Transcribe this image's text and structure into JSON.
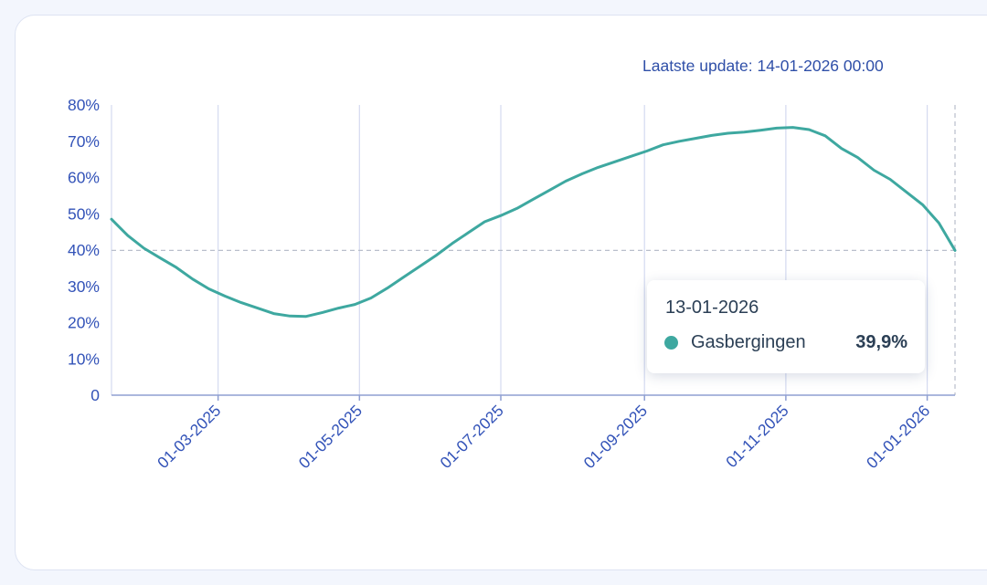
{
  "header": {
    "last_update": "Laatste update: 14-01-2026 00:00"
  },
  "colors": {
    "series": "#3ea8a0",
    "axis_text": "#3353b8",
    "grid": "#d4daf0"
  },
  "tooltip": {
    "date": "13-01-2026",
    "series_name": "Gasbergingen",
    "value": "39,9%"
  },
  "chart_data": {
    "type": "line",
    "y_ticks": [
      "0",
      "10%",
      "20%",
      "30%",
      "40%",
      "50%",
      "60%",
      "70%",
      "80%"
    ],
    "x_ticks": [
      "01-03-2025",
      "01-05-2025",
      "01-07-2025",
      "01-09-2025",
      "01-11-2025",
      "01-01-2026"
    ],
    "x_range": [
      "2025-01-14",
      "2026-01-13"
    ],
    "ylim": [
      0,
      80
    ],
    "grid": "vertical",
    "reference_line_y": 39.9,
    "series": [
      {
        "name": "Gasbergingen",
        "points": [
          [
            "2025-01-14",
            48.5
          ],
          [
            "2025-01-21",
            44.0
          ],
          [
            "2025-01-28",
            40.5
          ],
          [
            "2025-02-04",
            37.8
          ],
          [
            "2025-02-11",
            35.2
          ],
          [
            "2025-02-18",
            32.0
          ],
          [
            "2025-02-25",
            29.3
          ],
          [
            "2025-03-04",
            27.3
          ],
          [
            "2025-03-11",
            25.5
          ],
          [
            "2025-03-18",
            24.0
          ],
          [
            "2025-03-25",
            22.5
          ],
          [
            "2025-04-01",
            21.8
          ],
          [
            "2025-04-08",
            21.7
          ],
          [
            "2025-04-15",
            22.8
          ],
          [
            "2025-04-22",
            24.0
          ],
          [
            "2025-04-29",
            25.0
          ],
          [
            "2025-05-06",
            26.8
          ],
          [
            "2025-05-13",
            29.5
          ],
          [
            "2025-05-20",
            32.5
          ],
          [
            "2025-05-27",
            35.5
          ],
          [
            "2025-06-03",
            38.5
          ],
          [
            "2025-06-10",
            41.8
          ],
          [
            "2025-06-17",
            44.8
          ],
          [
            "2025-06-24",
            47.8
          ],
          [
            "2025-07-01",
            49.5
          ],
          [
            "2025-07-08",
            51.5
          ],
          [
            "2025-07-15",
            54.0
          ],
          [
            "2025-07-22",
            56.5
          ],
          [
            "2025-07-29",
            59.0
          ],
          [
            "2025-08-05",
            61.0
          ],
          [
            "2025-08-12",
            62.8
          ],
          [
            "2025-08-19",
            64.3
          ],
          [
            "2025-08-26",
            65.8
          ],
          [
            "2025-09-02",
            67.3
          ],
          [
            "2025-09-09",
            69.0
          ],
          [
            "2025-09-16",
            70.0
          ],
          [
            "2025-09-23",
            70.8
          ],
          [
            "2025-09-30",
            71.6
          ],
          [
            "2025-10-07",
            72.2
          ],
          [
            "2025-10-14",
            72.5
          ],
          [
            "2025-10-21",
            73.0
          ],
          [
            "2025-10-28",
            73.6
          ],
          [
            "2025-11-04",
            73.8
          ],
          [
            "2025-11-11",
            73.2
          ],
          [
            "2025-11-18",
            71.5
          ],
          [
            "2025-11-25",
            68.0
          ],
          [
            "2025-12-02",
            65.5
          ],
          [
            "2025-12-09",
            62.0
          ],
          [
            "2025-12-16",
            59.5
          ],
          [
            "2025-12-23",
            56.0
          ],
          [
            "2025-12-30",
            52.5
          ],
          [
            "2026-01-06",
            47.5
          ],
          [
            "2026-01-13",
            39.9
          ]
        ]
      }
    ]
  }
}
